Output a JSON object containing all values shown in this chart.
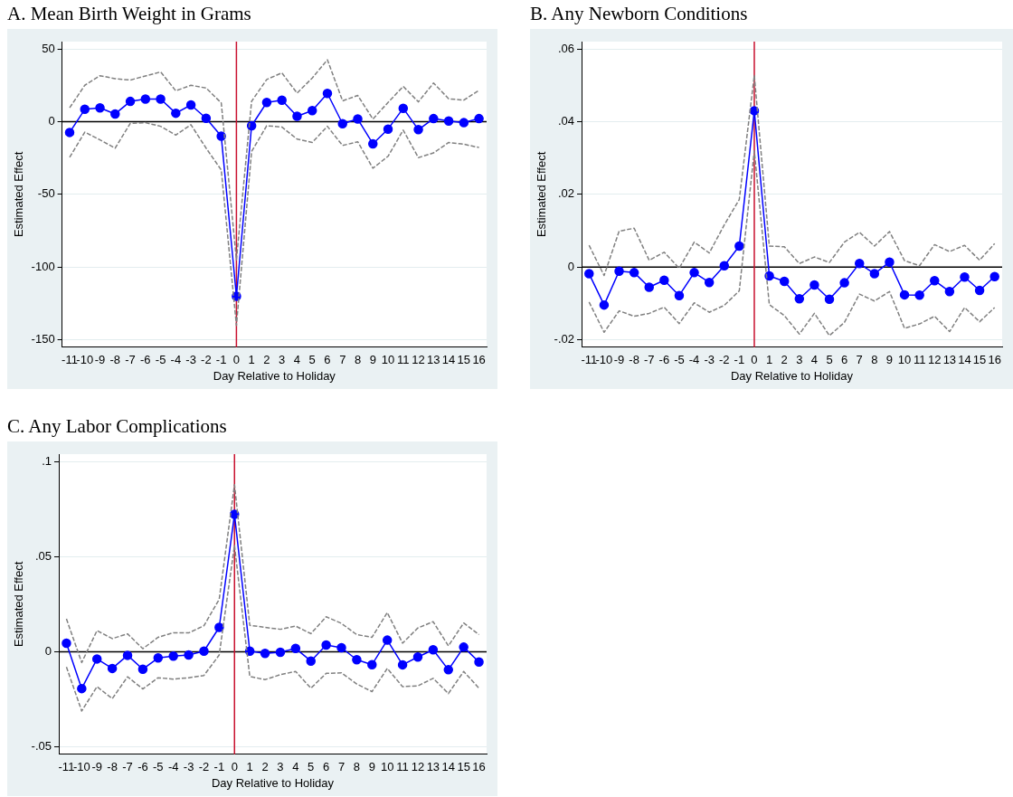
{
  "chart_data": [
    {
      "type": "line",
      "title": "A. Mean Birth Weight in Grams",
      "xlabel": "Day Relative to Holiday",
      "ylabel": "Estimated Effect",
      "x": [
        -11,
        -10,
        -9,
        -8,
        -7,
        -6,
        -5,
        -4,
        -3,
        -2,
        -1,
        0,
        1,
        2,
        3,
        4,
        5,
        6,
        7,
        8,
        9,
        10,
        11,
        12,
        13,
        14,
        15,
        16
      ],
      "xlim": [
        -11.5,
        16.5
      ],
      "xticks": [
        -11,
        -10,
        -9,
        -8,
        -7,
        -6,
        -5,
        -4,
        -3,
        -2,
        -1,
        0,
        1,
        2,
        3,
        4,
        5,
        6,
        7,
        8,
        9,
        10,
        11,
        12,
        13,
        14,
        15,
        16
      ],
      "ylim": [
        -155,
        55
      ],
      "yticks": [
        -150,
        -100,
        -50,
        0,
        50
      ],
      "grid": "y",
      "legend": false,
      "series": [
        {
          "color": "#808080",
          "line_style": "dashed",
          "marker": "none",
          "values": [
            9.5,
            25,
            31.6,
            29.5,
            28.6,
            31.4,
            34.2,
            21.2,
            25,
            23.1,
            12.9,
            -95,
            14,
            29,
            33.5,
            19.6,
            30,
            42.5,
            14.3,
            18,
            1.8,
            13.2,
            24.2,
            13.6,
            26.5,
            15.7,
            14.8,
            21.5
          ]
        },
        {
          "color": "#808080",
          "line_style": "dashed",
          "marker": "none",
          "values": [
            -24.5,
            -7.2,
            -12.5,
            -18.2,
            -1.2,
            -0.7,
            -3.2,
            -9.2,
            -2.1,
            -18.2,
            -33.2,
            -140,
            -20.5,
            -2.8,
            -3.7,
            -12,
            -14.3,
            -3.2,
            -16.4,
            -13.8,
            -32,
            -23.8,
            -5.8,
            -24.7,
            -21.5,
            -14.3,
            -15.5,
            -17.8
          ]
        },
        {
          "color": "#0000ff",
          "line_style": "solid",
          "marker": "circle",
          "values": [
            -7.4,
            8.5,
            9.5,
            5.3,
            13.9,
            15.5,
            15.5,
            5.8,
            11.5,
            2.3,
            -10,
            -120,
            -2.8,
            13.2,
            14.8,
            3.7,
            7.6,
            19.4,
            -1.4,
            1.8,
            -15.2,
            -5.1,
            9.2,
            -5.5,
            2.1,
            0.5,
            -0.7,
            2.1
          ]
        }
      ],
      "ref_lines": [
        {
          "axis": "y",
          "value": 0,
          "color": "#000000"
        },
        {
          "axis": "x",
          "value": 0,
          "color": "#c8102e"
        }
      ]
    },
    {
      "type": "line",
      "title": "B. Any Newborn Conditions",
      "xlabel": "Day Relative to Holiday",
      "ylabel": "Estimated Effect",
      "x": [
        -11,
        -10,
        -9,
        -8,
        -7,
        -6,
        -5,
        -4,
        -3,
        -2,
        -1,
        0,
        1,
        2,
        3,
        4,
        5,
        6,
        7,
        8,
        9,
        10,
        11,
        12,
        13,
        14,
        15,
        16
      ],
      "xlim": [
        -11.5,
        16.5
      ],
      "xticks": [
        -11,
        -10,
        -9,
        -8,
        -7,
        -6,
        -5,
        -4,
        -3,
        -2,
        -1,
        0,
        1,
        2,
        3,
        4,
        5,
        6,
        7,
        8,
        9,
        10,
        11,
        12,
        13,
        14,
        15,
        16
      ],
      "ylim": [
        -0.022,
        0.062
      ],
      "yticks": [
        {
          "value": -0.02,
          "label": "-.02"
        },
        0,
        {
          "value": 0.02,
          "label": ".02"
        },
        {
          "value": 0.04,
          "label": ".04"
        },
        {
          "value": 0.06,
          "label": ".06"
        }
      ],
      "grid": "y",
      "legend": false,
      "series": [
        {
          "color": "#808080",
          "line_style": "dashed",
          "marker": "none",
          "values": [
            0.006,
            -0.0023,
            0.0099,
            0.0107,
            0.0019,
            0.0041,
            -0.0003,
            0.0069,
            0.0039,
            0.0116,
            0.0186,
            0.0527,
            0.0058,
            0.0056,
            0.001,
            0.0028,
            0.0013,
            0.0069,
            0.0096,
            0.0058,
            0.0098,
            0.0018,
            0.0004,
            0.0062,
            0.0043,
            0.006,
            0.0019,
            0.0065
          ]
        },
        {
          "color": "#808080",
          "line_style": "dashed",
          "marker": "none",
          "values": [
            -0.0096,
            -0.0179,
            -0.012,
            -0.0135,
            -0.0127,
            -0.011,
            -0.0155,
            -0.0098,
            -0.0124,
            -0.0105,
            -0.0065,
            0.032,
            -0.0103,
            -0.0133,
            -0.0184,
            -0.0127,
            -0.0188,
            -0.0152,
            -0.0074,
            -0.0093,
            -0.0067,
            -0.0168,
            -0.0156,
            -0.0135,
            -0.0177,
            -0.0111,
            -0.015,
            -0.0111
          ]
        },
        {
          "color": "#0000ff",
          "line_style": "solid",
          "marker": "circle",
          "values": [
            -0.0018,
            -0.0104,
            -0.0011,
            -0.0015,
            -0.0055,
            -0.0036,
            -0.0078,
            -0.0015,
            -0.0042,
            0.0004,
            0.0058,
            0.043,
            -0.0024,
            -0.0039,
            -0.0087,
            -0.0049,
            -0.0088,
            -0.0043,
            0.001,
            -0.0018,
            0.0014,
            -0.0076,
            -0.0077,
            -0.0037,
            -0.0067,
            -0.0027,
            -0.0064,
            -0.0026
          ]
        }
      ],
      "ref_lines": [
        {
          "axis": "y",
          "value": 0,
          "color": "#000000"
        },
        {
          "axis": "x",
          "value": 0,
          "color": "#c8102e"
        }
      ]
    },
    {
      "type": "line",
      "title": "C. Any Labor Complications",
      "xlabel": "Day Relative to Holiday",
      "ylabel": "Estimated Effect",
      "x": [
        -11,
        -10,
        -9,
        -8,
        -7,
        -6,
        -5,
        -4,
        -3,
        -2,
        -1,
        0,
        1,
        2,
        3,
        4,
        5,
        6,
        7,
        8,
        9,
        10,
        11,
        12,
        13,
        14,
        15,
        16
      ],
      "xlim": [
        -11.5,
        16.5
      ],
      "xticks": [
        -11,
        -10,
        -9,
        -8,
        -7,
        -6,
        -5,
        -4,
        -3,
        -2,
        -1,
        0,
        1,
        2,
        3,
        4,
        5,
        6,
        7,
        8,
        9,
        10,
        11,
        12,
        13,
        14,
        15,
        16
      ],
      "ylim": [
        -0.054,
        0.104
      ],
      "yticks": [
        {
          "value": -0.05,
          "label": "-.05"
        },
        0,
        {
          "value": 0.05,
          "label": ".05"
        },
        {
          "value": 0.1,
          "label": ".1"
        }
      ],
      "grid": "y",
      "legend": false,
      "series": [
        {
          "color": "#808080",
          "line_style": "dashed",
          "marker": "none",
          "values": [
            0.0173,
            -0.0057,
            0.0111,
            0.0069,
            0.0094,
            0.0016,
            0.0076,
            0.01,
            0.0099,
            0.0137,
            0.0276,
            0.0879,
            0.0139,
            0.0128,
            0.0118,
            0.0135,
            0.0095,
            0.0184,
            0.0149,
            0.009,
            0.0076,
            0.0206,
            0.0045,
            0.0125,
            0.0158,
            0.0031,
            0.0151,
            0.009
          ]
        },
        {
          "color": "#808080",
          "line_style": "dashed",
          "marker": "none",
          "values": [
            -0.008,
            -0.0312,
            -0.0184,
            -0.0247,
            -0.0132,
            -0.0196,
            -0.0137,
            -0.0144,
            -0.0137,
            -0.0125,
            -0.0017,
            0.0559,
            -0.013,
            -0.0147,
            -0.0121,
            -0.0104,
            -0.0192,
            -0.0114,
            -0.0111,
            -0.017,
            -0.021,
            -0.0088,
            -0.0184,
            -0.018,
            -0.014,
            -0.022,
            -0.0104,
            -0.0192
          ]
        },
        {
          "color": "#0000ff",
          "line_style": "solid",
          "marker": "circle",
          "values": [
            0.0045,
            -0.0194,
            -0.0038,
            -0.0088,
            -0.0019,
            -0.0092,
            -0.0033,
            -0.0023,
            -0.0017,
            0.0003,
            0.0128,
            0.0723,
            0.0003,
            -0.0009,
            -0.0003,
            0.0017,
            -0.0049,
            0.0035,
            0.0021,
            -0.0042,
            -0.0068,
            0.0061,
            -0.0069,
            -0.0028,
            0.001,
            -0.0095,
            0.0024,
            -0.0054
          ]
        }
      ],
      "ref_lines": [
        {
          "axis": "y",
          "value": 0,
          "color": "#000000"
        },
        {
          "axis": "x",
          "value": 0,
          "color": "#c8102e"
        }
      ]
    }
  ]
}
